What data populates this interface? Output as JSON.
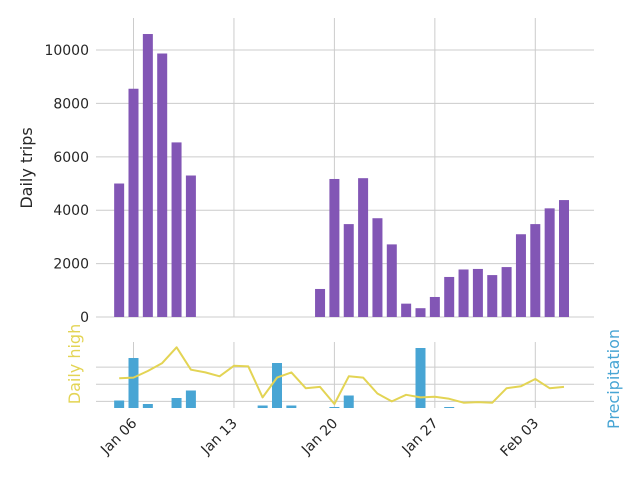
{
  "chart_data": [
    {
      "type": "bar",
      "ylabel": "Daily trips",
      "ylim": [
        0,
        11200
      ],
      "yticks": [
        0,
        2000,
        4000,
        6000,
        8000,
        10000
      ],
      "grid": true,
      "x": [
        "2014-01-01",
        "2014-01-02",
        "2014-01-03",
        "2014-01-04",
        "2014-01-05",
        "2014-01-06",
        "2014-01-07",
        "2014-01-08",
        "2014-01-09",
        "2014-01-10",
        "2014-01-11",
        "2014-01-12",
        "2014-01-13",
        "2014-01-14",
        "2014-01-15",
        "2014-01-16",
        "2014-01-17",
        "2014-01-18",
        "2014-01-19",
        "2014-01-20",
        "2014-01-21",
        "2014-01-22",
        "2014-01-23",
        "2014-01-24",
        "2014-01-25",
        "2014-01-26",
        "2014-01-27",
        "2014-01-28",
        "2014-01-29",
        "2014-01-30",
        "2014-01-31",
        "2014-02-01",
        "2014-02-02",
        "2014-02-03",
        "2014-02-04",
        "2014-02-05"
      ],
      "values": [
        0,
        0,
        0,
        0,
        5000,
        8550,
        10600,
        9870,
        6540,
        5300,
        0,
        0,
        0,
        0,
        0,
        0,
        0,
        0,
        1050,
        5170,
        3480,
        5200,
        3700,
        2720,
        500,
        330,
        750,
        1500,
        1780,
        1800,
        1570,
        1870,
        3100,
        3480,
        4070,
        4380
      ],
      "color": "#8256b5"
    },
    {
      "type": "line",
      "series": [
        {
          "axis": "left",
          "ylabel": "Daily high",
          "color": "#e3d454",
          "values": [
            null,
            null,
            null,
            null,
            36.5,
            37,
            42,
            48,
            60,
            43,
            41,
            38,
            46,
            45.5,
            22,
            37,
            41,
            29,
            30,
            17,
            38,
            37,
            25,
            19,
            24,
            22,
            22.5,
            21,
            18,
            18.5,
            18,
            29,
            30.5,
            36,
            29,
            30
          ]
        }
      ],
      "ylim_left": [
        14,
        64
      ],
      "gridlines": [
        19,
        32,
        45
      ]
    },
    {
      "type": "bar",
      "ylabel": "Precipitation",
      "color": "#48a5d4",
      "values": [
        0,
        0,
        0,
        0,
        0.15,
        1.0,
        0.08,
        0,
        0.2,
        0.35,
        0,
        0,
        0,
        0,
        0.05,
        0.9,
        0.05,
        0,
        0,
        0.02,
        0.25,
        0,
        0,
        0,
        0,
        1.2,
        0,
        0.02,
        0,
        0,
        0,
        0,
        0,
        0,
        0,
        0
      ],
      "ylim": [
        0,
        1.2
      ]
    }
  ],
  "xaxis": {
    "ticks": [
      {
        "date": "2014-01-06",
        "label": "Jan 06"
      },
      {
        "date": "2014-01-13",
        "label": "Jan 13"
      },
      {
        "date": "2014-01-20",
        "label": "Jan 20"
      },
      {
        "date": "2014-01-27",
        "label": "Jan 27"
      },
      {
        "date": "2014-02-03",
        "label": "Feb 03"
      }
    ]
  },
  "labels": {
    "top_ylabel": "Daily trips",
    "bottom_left_ylabel": "Daily high",
    "bottom_right_ylabel": "Precipitation"
  }
}
